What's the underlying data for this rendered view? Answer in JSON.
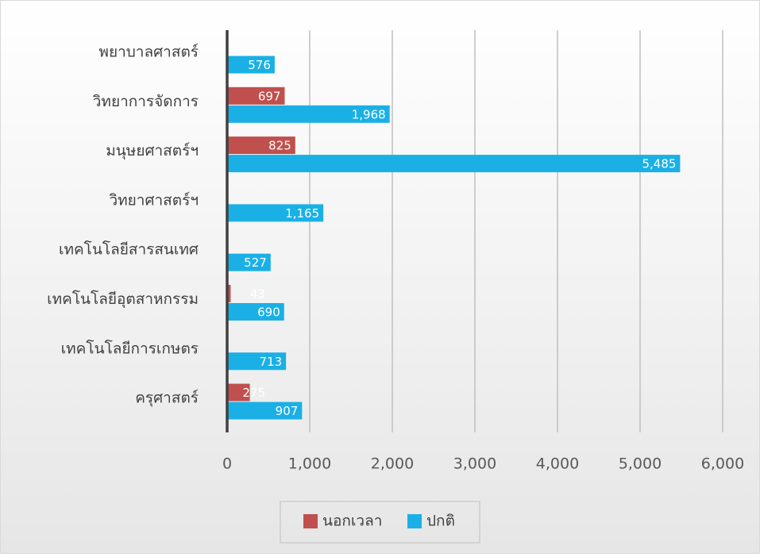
{
  "chart_data": {
    "type": "barh",
    "categories": [
      "พยาบาลศาสตร์",
      "วิทยาการจัดการ",
      "มนุษยศาสตร์ฯ",
      "วิทยาศาสตร์ฯ",
      "เทคโนโลยีสารสนเทศ",
      "เทคโนโลยีอุตสาหกรรม",
      "เทคโนโลยีการเกษตร",
      "ครุศาสตร์"
    ],
    "series": [
      {
        "name": "นอกเวลา",
        "color": "#c0504d",
        "values": [
          null,
          697,
          825,
          null,
          null,
          43,
          null,
          275
        ],
        "value_labels": [
          null,
          "697",
          "825",
          null,
          null,
          "43",
          null,
          "275"
        ]
      },
      {
        "name": "ปกติ",
        "color": "#1ab0e6",
        "values": [
          576,
          1968,
          5485,
          1165,
          527,
          690,
          713,
          907
        ],
        "value_labels": [
          "576",
          "1,968",
          "5,485",
          "1,165",
          "527",
          "690",
          "713",
          "907"
        ]
      }
    ],
    "xlim": [
      0,
      6000
    ],
    "xticks": [
      0,
      {
        "value": 1000,
        "label": "1,000"
      },
      {
        "value": 2000,
        "label": "2,000"
      },
      {
        "value": 3000,
        "label": "3,000"
      },
      {
        "value": 4000,
        "label": "4,000"
      },
      {
        "value": 5000,
        "label": "5,000"
      },
      {
        "value": 6000,
        "label": "6,000"
      }
    ],
    "grid": true,
    "legend": "bottom"
  }
}
